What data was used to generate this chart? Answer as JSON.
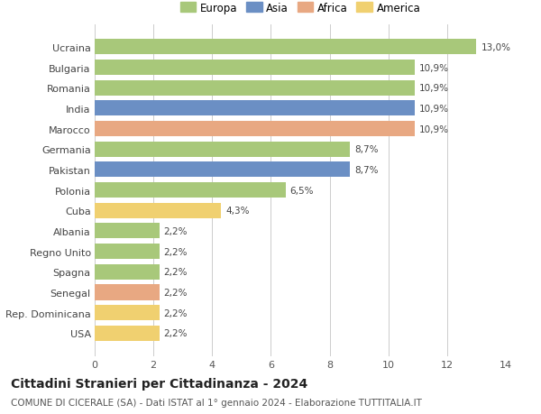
{
  "countries": [
    "USA",
    "Rep. Dominicana",
    "Senegal",
    "Spagna",
    "Regno Unito",
    "Albania",
    "Cuba",
    "Polonia",
    "Pakistan",
    "Germania",
    "Marocco",
    "India",
    "Romania",
    "Bulgaria",
    "Ucraina"
  ],
  "values": [
    2.2,
    2.2,
    2.2,
    2.2,
    2.2,
    2.2,
    4.3,
    6.5,
    8.7,
    8.7,
    10.9,
    10.9,
    10.9,
    10.9,
    13.0
  ],
  "continents": [
    "America",
    "America",
    "Africa",
    "Europa",
    "Europa",
    "Europa",
    "America",
    "Europa",
    "Asia",
    "Europa",
    "Africa",
    "Asia",
    "Europa",
    "Europa",
    "Europa"
  ],
  "continent_colors": {
    "Europa": "#a8c87a",
    "Asia": "#6b8fc4",
    "Africa": "#e8a882",
    "America": "#f0d070"
  },
  "labels": [
    "2,2%",
    "2,2%",
    "2,2%",
    "2,2%",
    "2,2%",
    "2,2%",
    "4,3%",
    "6,5%",
    "8,7%",
    "8,7%",
    "10,9%",
    "10,9%",
    "10,9%",
    "10,9%",
    "13,0%"
  ],
  "title": "Cittadini Stranieri per Cittadinanza - 2024",
  "subtitle": "COMUNE DI CICERALE (SA) - Dati ISTAT al 1° gennaio 2024 - Elaborazione TUTTITALIA.IT",
  "xlim": [
    0,
    14
  ],
  "xticks": [
    0,
    2,
    4,
    6,
    8,
    10,
    12,
    14
  ],
  "background_color": "#ffffff",
  "grid_color": "#cccccc",
  "bar_height": 0.75,
  "legend_items": [
    {
      "label": "Europa",
      "color": "#a8c87a"
    },
    {
      "label": "Asia",
      "color": "#6b8fc4"
    },
    {
      "label": "Africa",
      "color": "#e8a882"
    },
    {
      "label": "America",
      "color": "#f0d070"
    }
  ],
  "title_fontsize": 10,
  "subtitle_fontsize": 7.5,
  "label_fontsize": 7.5,
  "tick_fontsize": 8,
  "legend_fontsize": 8.5,
  "ylabel_fontsize": 8
}
